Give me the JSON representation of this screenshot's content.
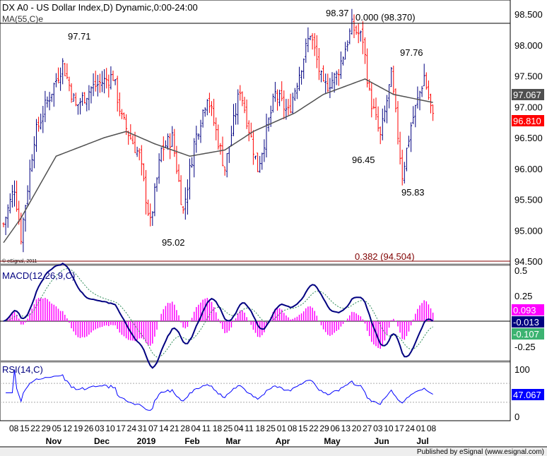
{
  "header": {
    "title": "DX A0 - US Dollar Index,D) Dynamic,0:00-24:00",
    "ma_label": "MA(55,C)e",
    "copyright": "© eSignal, 2011"
  },
  "footer": {
    "published": "Published by eSignal (www.esignal.com)"
  },
  "colors": {
    "up": "#000080",
    "down": "#ff0000",
    "ma": "#505050",
    "macd": "#000080",
    "signal": "#2e8b57",
    "hist": "#ff00ff",
    "rsi": "#0000ff"
  },
  "chart_data": [
    {
      "type": "ohlc",
      "title": "DX A0 - US Dollar Index, Daily",
      "ylim": [
        94.5,
        98.5
      ],
      "yticks": [
        "98.500",
        "98.000",
        "97.500",
        "97.000",
        "96.500",
        "96.000",
        "95.500",
        "95.000",
        "94.500"
      ],
      "xticks": [
        "08",
        "15",
        "22",
        "29",
        "05",
        "12",
        "19",
        "26",
        "03",
        "10",
        "17",
        "24",
        "31",
        "07",
        "14",
        "21",
        "28",
        "04",
        "11",
        "18",
        "25",
        "04",
        "11",
        "18",
        "25",
        "01",
        "08",
        "15",
        "22",
        "29",
        "06",
        "13",
        "20",
        "27",
        "03",
        "10",
        "17",
        "24",
        "01",
        "08"
      ],
      "months": [
        "Nov",
        "Dec",
        "2019",
        "Feb",
        "Mar",
        "Apr",
        "May",
        "Jun",
        "Jul"
      ],
      "close_waypoints": [
        [
          0,
          95.1
        ],
        [
          5,
          95.7
        ],
        [
          8,
          94.9
        ],
        [
          14,
          96.5
        ],
        [
          19,
          97.0
        ],
        [
          27,
          97.7
        ],
        [
          33,
          97.0
        ],
        [
          40,
          97.3
        ],
        [
          50,
          97.5
        ],
        [
          54,
          96.8
        ],
        [
          62,
          96.2
        ],
        [
          67,
          95.1
        ],
        [
          72,
          96.3
        ],
        [
          77,
          96.5
        ],
        [
          82,
          95.3
        ],
        [
          87,
          96.4
        ],
        [
          93,
          97.2
        ],
        [
          101,
          96.0
        ],
        [
          108,
          97.3
        ],
        [
          116,
          96.0
        ],
        [
          124,
          97.2
        ],
        [
          130,
          96.9
        ],
        [
          140,
          98.2
        ],
        [
          146,
          97.3
        ],
        [
          152,
          97.5
        ],
        [
          159,
          98.3
        ],
        [
          164,
          98.1
        ],
        [
          167,
          97.2
        ],
        [
          172,
          96.5
        ],
        [
          177,
          97.5
        ],
        [
          182,
          95.9
        ],
        [
          186,
          96.7
        ],
        [
          192,
          97.5
        ],
        [
          196,
          96.81
        ]
      ],
      "ma_waypoints": [
        [
          0,
          94.8
        ],
        [
          8,
          95.2
        ],
        [
          24,
          96.2
        ],
        [
          46,
          96.5
        ],
        [
          56,
          96.6
        ],
        [
          69,
          96.4
        ],
        [
          85,
          96.2
        ],
        [
          101,
          96.3
        ],
        [
          114,
          96.6
        ],
        [
          133,
          96.9
        ],
        [
          146,
          97.2
        ],
        [
          165,
          97.45
        ],
        [
          178,
          97.2
        ],
        [
          196,
          97.07
        ]
      ],
      "annotations": {
        "h1": "97.71",
        "l1": "95.02",
        "h2": "98.37",
        "fib0": "0.000 (98.370)",
        "h3": "97.76",
        "l2": "96.45",
        "l3": "95.83",
        "fib382": "0.382 (94.504)"
      },
      "last_values": {
        "ma": "97.067",
        "close": "96.810"
      }
    },
    {
      "type": "line",
      "title": "MACD(12,26,9,C)",
      "ylim": [
        -0.35,
        0.55
      ],
      "yticks": [
        "0.5",
        "0.25",
        "-0.25"
      ],
      "last_values": {
        "hist": "0.093",
        "macd": "-0.013",
        "signal": "-0.107"
      }
    },
    {
      "type": "line",
      "title": "RSI(14,C)",
      "ylim": [
        0,
        100
      ],
      "yticks": [
        "100",
        "0"
      ],
      "last_values": {
        "rsi": "47.067"
      }
    }
  ]
}
